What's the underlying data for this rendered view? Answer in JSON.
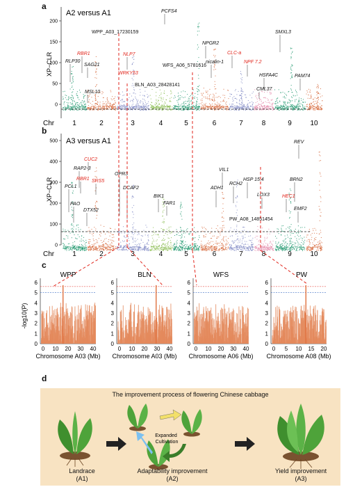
{
  "panels": {
    "a": "a",
    "b": "b",
    "c": "c",
    "d": "d"
  },
  "panel_a": {
    "title": "A2 versus A1",
    "ylabel": "XP−CLR",
    "chr_label": "Chr",
    "chromosomes": [
      "1",
      "2",
      "3",
      "4",
      "5",
      "6",
      "7",
      "8",
      "9",
      "10"
    ],
    "yticks": [
      "0",
      "50",
      "100",
      "150",
      "200"
    ],
    "genes_red": [
      "RBR1",
      "NLP7",
      "WRKY53",
      "CLC-a",
      "NPF 7.2"
    ],
    "genes_black": [
      "RLP30",
      "SAG21",
      "MSL10",
      "PCFS4",
      "NPGR2",
      "nicalin-1",
      "HSFA4C",
      "CML37",
      "SMXL3",
      "PAM74"
    ],
    "snps": [
      "WPP_A03_17230159",
      "BLN_A03_28428141",
      "WFS_A06_5781616"
    ]
  },
  "panel_b": {
    "title": "A3 versus A1",
    "ylabel": "XP−CLR",
    "chr_label": "Chr",
    "chromosomes": [
      "1",
      "2",
      "3",
      "4",
      "5",
      "6",
      "7",
      "8",
      "9",
      "10"
    ],
    "yticks": [
      "0",
      "100",
      "200",
      "300",
      "400",
      "500"
    ],
    "genes_red": [
      "CUC2",
      "RBR1",
      "SRS5",
      "HEC1"
    ],
    "genes_black": [
      "REV",
      "RAP2-3",
      "PCL1",
      "PAO",
      "DTX52",
      "OPR3",
      "DCAF2",
      "BIK1",
      "FAR1",
      "VIL1",
      "ADH1",
      "RCH2",
      "HSP 15.4",
      "LOX3",
      "BRN2",
      "EMF2"
    ],
    "snps": [
      "PW_A08_14851454"
    ]
  },
  "panel_c": {
    "ylabel": "-log10(P)",
    "plots": [
      {
        "title": "WPP",
        "xlabel": "Chromosome A03 (Mb)",
        "xticks": [
          "0",
          "10",
          "20",
          "30",
          "40"
        ]
      },
      {
        "title": "BLN",
        "xlabel": "Chromosome A03 (Mb)",
        "xticks": [
          "0",
          "10",
          "20",
          "30",
          "40"
        ]
      },
      {
        "title": "WFS",
        "xlabel": "Chromosome A06 (Mb)",
        "xticks": [
          "0",
          "10",
          "20",
          "30",
          "40"
        ]
      },
      {
        "title": "PW",
        "xlabel": "Chromosome A08 (Mb)",
        "xticks": [
          "0",
          "5",
          "10",
          "15",
          "20"
        ]
      }
    ],
    "yticks": [
      "0",
      "1",
      "2",
      "3",
      "4",
      "5",
      "6"
    ]
  },
  "panel_d": {
    "title": "The improvement process of flowering Chinese cabbage",
    "cultivation": "Expanded\nCultivation",
    "stages": [
      {
        "name": "Landrace",
        "code": "(A1)"
      },
      {
        "name": "Adaptability improvement",
        "code": "(A2)"
      },
      {
        "name": "Yield improvement",
        "code": "(A3)"
      }
    ]
  },
  "colors": {
    "c1": "#2e9e77",
    "c2": "#d9744a",
    "c3": "#8b93c9",
    "c4": "#8fbf59",
    "c5": "#2e9e77",
    "c6": "#d9744a",
    "c7": "#8b93c9",
    "c8": "#e58fae",
    "c9": "#2e9e77",
    "c10": "#d9744a",
    "red": "#e1261c",
    "blue": "#3d6fc4"
  }
}
